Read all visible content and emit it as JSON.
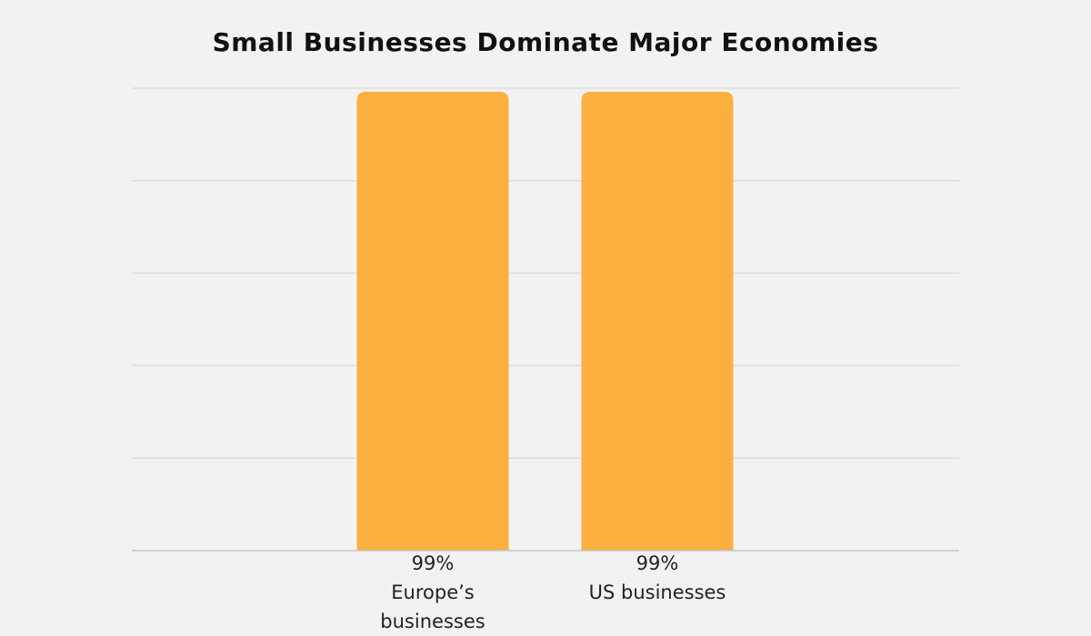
{
  "chart_data": {
    "type": "bar",
    "title": "Small Businesses Dominate Major Economies",
    "categories": [
      [
        "99%",
        "Europe’s",
        "businesses"
      ],
      [
        "99%",
        "US businesses"
      ]
    ],
    "values": [
      99,
      99
    ],
    "ylim": [
      0,
      99
    ],
    "grid": true,
    "legend": "none",
    "bar_color": "#fbb040",
    "grid_color": "#d9d9d9",
    "axis_color": "#c4c4c4"
  }
}
